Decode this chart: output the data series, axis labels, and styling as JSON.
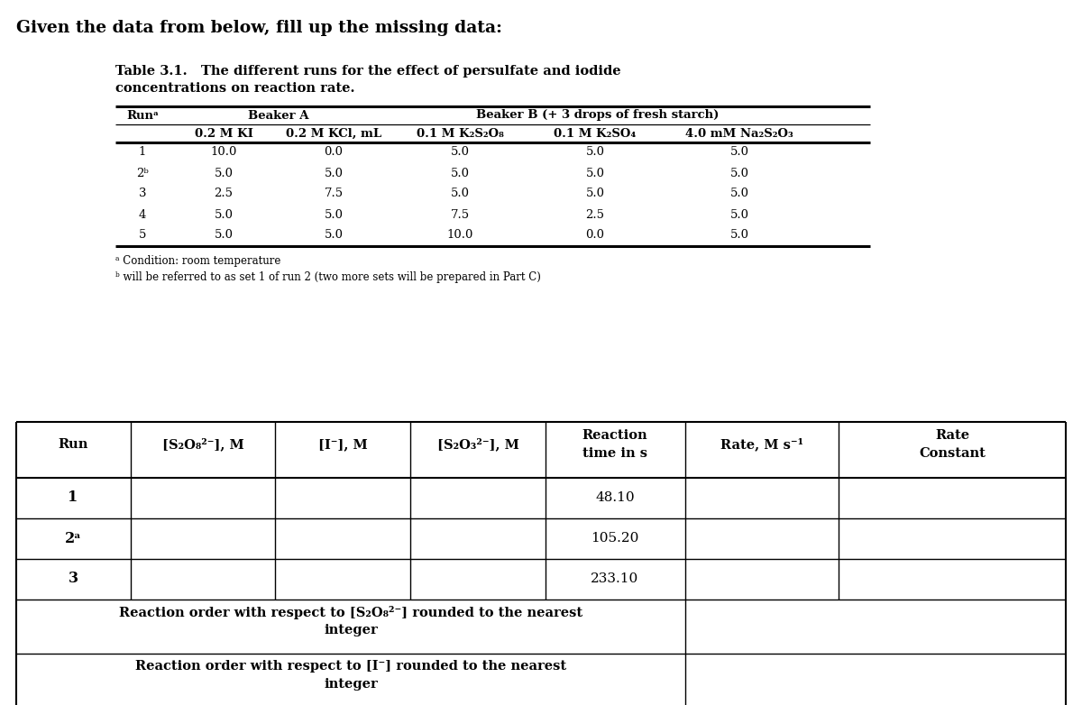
{
  "title_text": "Given the data from below, fill up the missing data:",
  "table1_caption_bold": "Table 3.1.",
  "table1_caption_rest": "   The different runs for the effect of persulfate and iodide\nconcentrations on reaction rate.",
  "t1_header2": [
    "0.2 M KI",
    "0.2 M KCl, mL",
    "0.1 M K₂S₂O₈",
    "0.1 M K₂SO₄",
    "4.0 mM Na₂S₂O₃"
  ],
  "table1_data": [
    [
      "1",
      "10.0",
      "0.0",
      "5.0",
      "5.0",
      "5.0"
    ],
    [
      "2ᵇ",
      "5.0",
      "5.0",
      "5.0",
      "5.0",
      "5.0"
    ],
    [
      "3",
      "2.5",
      "7.5",
      "5.0",
      "5.0",
      "5.0"
    ],
    [
      "4",
      "5.0",
      "5.0",
      "7.5",
      "2.5",
      "5.0"
    ],
    [
      "5",
      "5.0",
      "5.0",
      "10.0",
      "0.0",
      "5.0"
    ]
  ],
  "fn_a": "ᵃ Condition: room temperature",
  "fn_b": "ᵇ will be referred to as set 1 of run 2 (two more sets will be prepared in Part C)",
  "t2_header": [
    "Run",
    "[S₂O₈²⁻], M",
    "[I⁻], M",
    "[S₂O₃²⁻], M",
    "Reaction\ntime in s",
    "Rate, M s⁻¹",
    "Rate\nConstant"
  ],
  "t2_runs": [
    "1",
    "2ᵃ",
    "3"
  ],
  "t2_times": [
    "48.10",
    "105.20",
    "233.10"
  ],
  "t2_merged1": "Reaction order with respect to [S₂O₈²⁻] rounded to the nearest\ninteger",
  "t2_merged2": "Reaction order with respect to [I⁻] rounded to the nearest\ninteger",
  "bg": "#ffffff"
}
